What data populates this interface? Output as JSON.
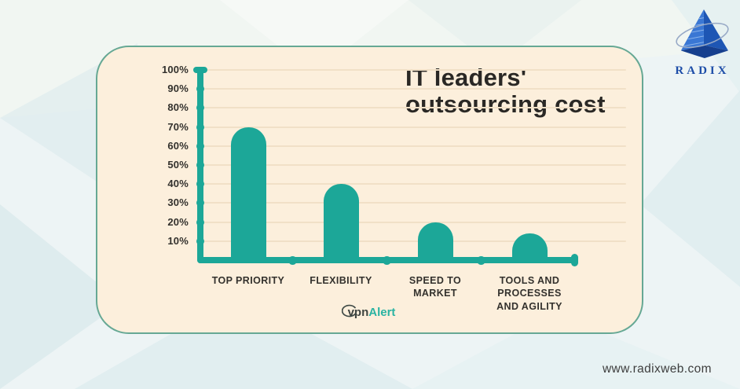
{
  "page": {
    "background_color": "#edf4f5",
    "brand_logo": {
      "label": "RADIX",
      "color": "#1d4da8",
      "icon": "pyramid-logo"
    },
    "footer": {
      "url": "www.radixweb.com"
    },
    "source_logo": {
      "name": "vpnAlert",
      "prefix": "vpn",
      "suffix": "Alert"
    }
  },
  "chart_data": {
    "type": "bar",
    "title": "IT leaders' outsourcing cost",
    "categories": [
      "TOP PRIORITY",
      "FLEXIBILITY",
      "SPEED TO\nMARKET",
      "TOOLS AND\nPROCESSES\nAND AGILITY"
    ],
    "values": [
      70,
      40,
      20,
      14
    ],
    "unit": "%",
    "xlabel": "",
    "ylabel": "",
    "ylim": [
      0,
      100
    ],
    "ytick_labels": [
      "10%",
      "20%",
      "30%",
      "40%",
      "50%",
      "60%",
      "70%",
      "80%",
      "90%",
      "100%"
    ],
    "grid": true,
    "legend_position": "none",
    "colors": {
      "bar": "#1CA798",
      "axis": "#1CA798",
      "grid": "#f1e0c7",
      "label": "#33312d",
      "title": "#2a2825",
      "card_background": "#fcefdc",
      "card_border": "#66a894"
    }
  }
}
